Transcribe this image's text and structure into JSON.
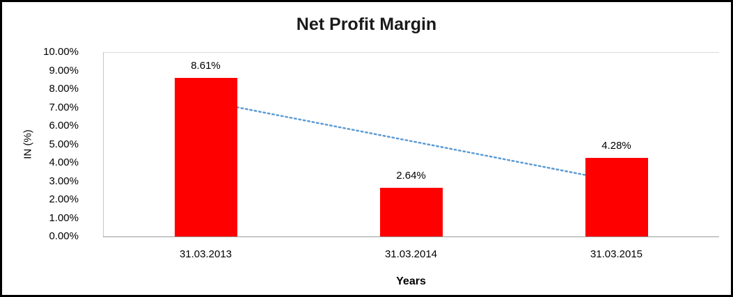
{
  "chart_data": {
    "type": "bar",
    "title": "Net Profit Margin",
    "categories": [
      "31.03.2013",
      "31.03.2014",
      "31.03.2015"
    ],
    "values": [
      8.61,
      2.64,
      4.28
    ],
    "data_labels": [
      "8.61%",
      "2.64%",
      "4.28%"
    ],
    "xlabel": "Years",
    "ylabel": "IN (%)",
    "ylim": [
      0,
      10
    ],
    "ytick_step": 1,
    "ytick_labels": [
      "0.00%",
      "1.00%",
      "2.00%",
      "3.00%",
      "4.00%",
      "5.00%",
      "6.00%",
      "7.00%",
      "8.00%",
      "9.00%",
      "10.00%"
    ],
    "bar_color": "#ff0000",
    "grid": "off",
    "legend": "none",
    "trendline": {
      "type": "linear",
      "style": "dotted",
      "color": "#5b9bd5",
      "start_value": 7.34,
      "end_value": 3.01
    }
  }
}
